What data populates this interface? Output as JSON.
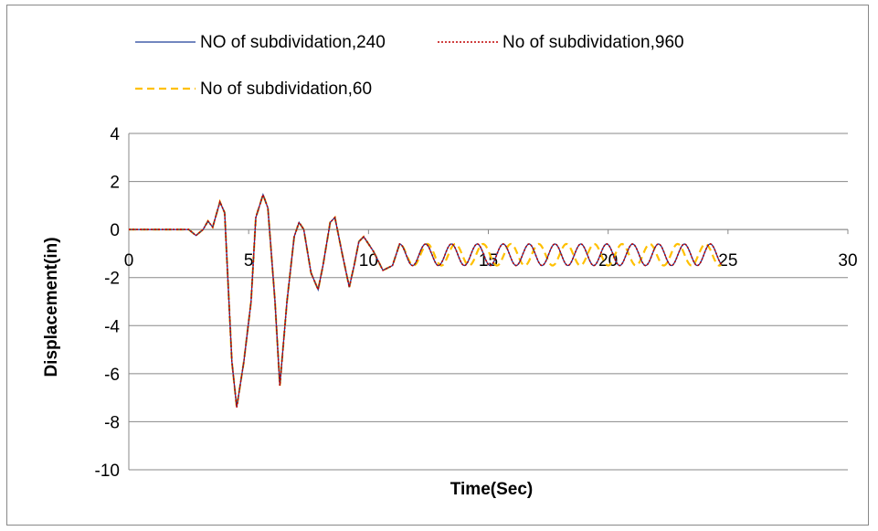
{
  "chart_data": {
    "type": "line",
    "title": "",
    "xlabel": "Time(Sec)",
    "ylabel": "Displacement(in)",
    "xlim": [
      0,
      30
    ],
    "ylim": [
      -10,
      4
    ],
    "x_ticks": [
      "0",
      "5",
      "10",
      "15",
      "20",
      "25",
      "30"
    ],
    "y_ticks": [
      "4",
      "2",
      "0",
      "-2",
      "-4",
      "-6",
      "-8",
      "-10"
    ],
    "grid": "horizontal",
    "legend_position": "top",
    "series": [
      {
        "name": "NO of subdividation,240",
        "color": "#1f3d99",
        "dash": "solid",
        "points": [
          [
            0,
            0
          ],
          [
            2.5,
            0
          ],
          [
            2.8,
            -0.25
          ],
          [
            3.1,
            0.0
          ],
          [
            3.3,
            0.35
          ],
          [
            3.5,
            0.1
          ],
          [
            3.8,
            1.15
          ],
          [
            4.0,
            0.7
          ],
          [
            4.3,
            -5.5
          ],
          [
            4.5,
            -7.4
          ],
          [
            4.8,
            -5.5
          ],
          [
            5.1,
            -3.0
          ],
          [
            5.3,
            0.5
          ],
          [
            5.6,
            1.45
          ],
          [
            5.8,
            0.9
          ],
          [
            6.1,
            -3.0
          ],
          [
            6.3,
            -6.5
          ],
          [
            6.6,
            -3.0
          ],
          [
            6.9,
            -0.3
          ],
          [
            7.1,
            0.3
          ],
          [
            7.3,
            0.0
          ],
          [
            7.6,
            -1.8
          ],
          [
            7.9,
            -2.5
          ],
          [
            8.1,
            -1.5
          ],
          [
            8.4,
            0.3
          ],
          [
            8.6,
            0.5
          ],
          [
            8.9,
            -1.0
          ],
          [
            9.2,
            -2.4
          ],
          [
            9.4,
            -1.5
          ],
          [
            9.6,
            -0.5
          ],
          [
            9.8,
            -0.3
          ],
          [
            10.2,
            -0.9
          ],
          [
            10.6,
            -1.7
          ],
          [
            11.0,
            -1.5
          ],
          [
            11.3,
            -0.6
          ]
        ],
        "decay_from": 11.3,
        "decay_period": 1.08,
        "decay_center": -1.05,
        "decay_amp": 0.45,
        "decay_end": 24.8
      },
      {
        "name": "No of subdividation,960",
        "color": "#c00000",
        "dash": "dotted",
        "same_as": 0
      },
      {
        "name": "No of subdividation,60",
        "color": "#ffc000",
        "dash": "dashed",
        "same_as": 0,
        "period_after_10": 1.16
      }
    ]
  }
}
